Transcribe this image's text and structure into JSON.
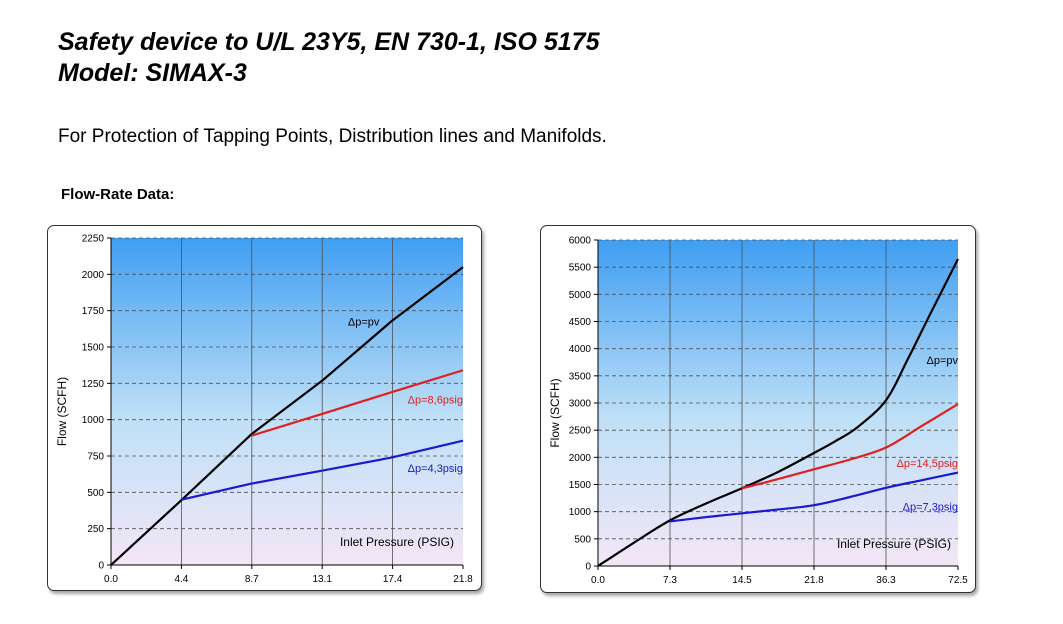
{
  "header": {
    "title_line1": "Safety device to U/L 23Y5, EN 730-1, ISO 5175",
    "title_line2": "Model:  SIMAX-3",
    "subtitle": "For Protection of Tapping Points, Distribution lines and Manifolds.",
    "section_label": "Flow-Rate Data:"
  },
  "chart_data": [
    {
      "type": "line",
      "title": "",
      "xlabel": "Inlet Pressure (PSIG)",
      "ylabel": "Flow  (SCFH)",
      "categories": [
        "0.0",
        "4.4",
        "8.7",
        "13.1",
        "17.4",
        "21.8"
      ],
      "xlim": [
        0,
        21.8
      ],
      "ylim": [
        0,
        2250
      ],
      "yticks": [
        0,
        250,
        500,
        750,
        1000,
        1250,
        1500,
        1750,
        2000,
        2250
      ],
      "grid": true,
      "series": [
        {
          "name": "Δp=pv",
          "color": "#000000",
          "x": [
            0,
            4.4,
            8.7,
            13.1,
            17.4,
            21.8
          ],
          "y": [
            0,
            450,
            900,
            1270,
            1680,
            2050
          ]
        },
        {
          "name": "Δp=8,6psig",
          "color": "#e02020",
          "x": [
            8.7,
            13.1,
            17.4,
            21.8
          ],
          "y": [
            890,
            1040,
            1190,
            1340
          ]
        },
        {
          "name": "Δp=4,3psig",
          "color": "#1a1ad0",
          "x": [
            4.4,
            8.7,
            13.1,
            17.4,
            21.8
          ],
          "y": [
            450,
            560,
            650,
            740,
            855
          ]
        }
      ]
    },
    {
      "type": "line",
      "title": "",
      "xlabel": "Inlet Pressure (PSIG)",
      "ylabel": "Flow  (SCFH)",
      "categories": [
        "0.0",
        "7.3",
        "14.5",
        "21.8",
        "36.3",
        "72.5"
      ],
      "xlim": [
        0,
        5
      ],
      "ylim": [
        0,
        6000
      ],
      "yticks": [
        0,
        500,
        1000,
        1500,
        2000,
        2500,
        3000,
        3500,
        4000,
        4500,
        5000,
        5500,
        6000
      ],
      "grid": true,
      "series": [
        {
          "name": "Δp=pv",
          "color": "#000000",
          "x": [
            0,
            0.5,
            1,
            1.5,
            2,
            2.5,
            3,
            3.3,
            3.6,
            4,
            4.3,
            4.6,
            5
          ],
          "y": [
            0,
            430,
            840,
            1150,
            1430,
            1730,
            2080,
            2300,
            2550,
            3050,
            3800,
            4600,
            5650
          ]
        },
        {
          "name": "Δp=14,5psig",
          "color": "#e02020",
          "x": [
            2,
            2.5,
            3,
            3.5,
            4,
            4.5,
            5
          ],
          "y": [
            1430,
            1600,
            1780,
            1960,
            2180,
            2580,
            2980
          ]
        },
        {
          "name": "Δp=7,3psig",
          "color": "#1a1ad0",
          "x": [
            1,
            1.5,
            2,
            2.5,
            3,
            3.5,
            4,
            4.5,
            5
          ],
          "y": [
            820,
            900,
            970,
            1040,
            1120,
            1270,
            1440,
            1580,
            1720
          ]
        }
      ]
    }
  ]
}
